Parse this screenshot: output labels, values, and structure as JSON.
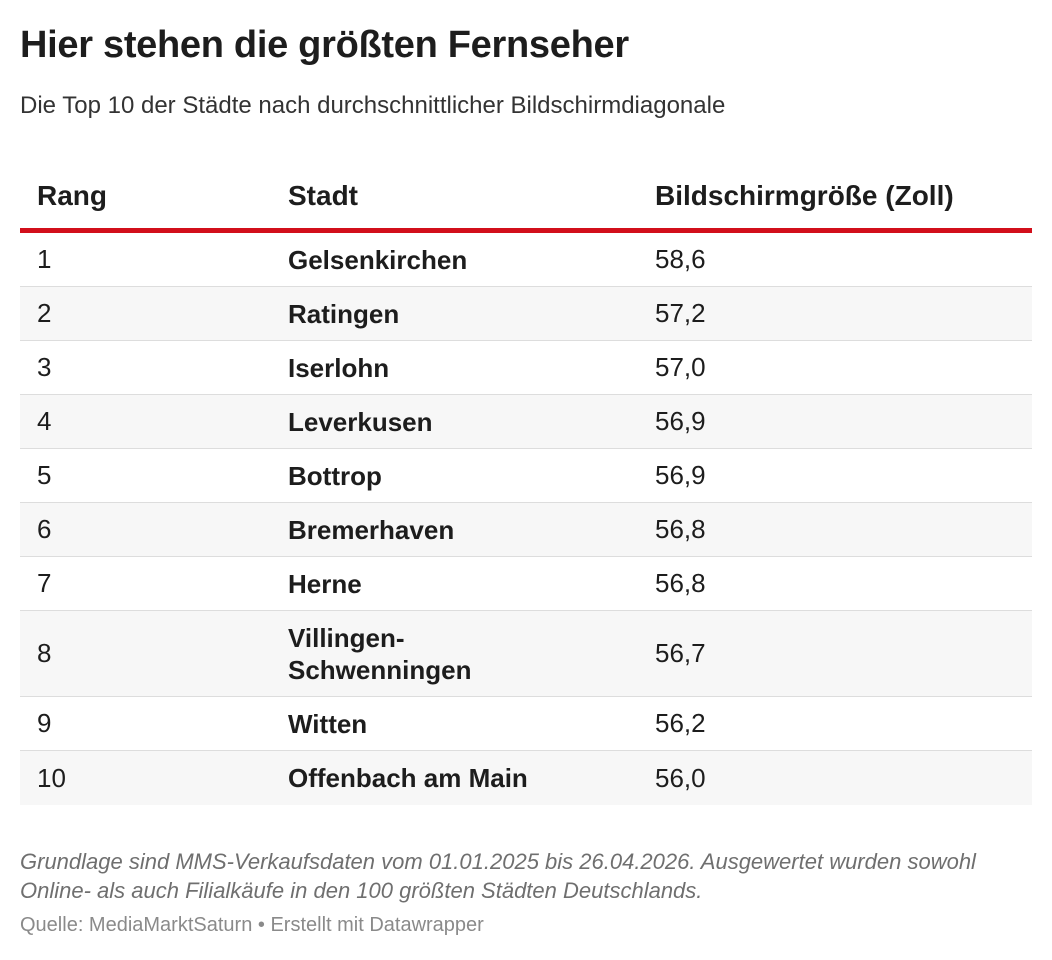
{
  "title": "Hier stehen die größten Fernseher",
  "subtitle": "Die Top 10 der Städte nach durchschnittlicher Bildschirmdiagonale",
  "chart_data": {
    "type": "table",
    "columns": [
      "Rang",
      "Stadt",
      "Bildschirmgröße (Zoll)"
    ],
    "rows": [
      {
        "rank": "1",
        "city": [
          "Gelsenkirchen"
        ],
        "size": "58,6"
      },
      {
        "rank": "2",
        "city": [
          "Ratingen"
        ],
        "size": "57,2"
      },
      {
        "rank": "3",
        "city": [
          "Iserlohn"
        ],
        "size": "57,0"
      },
      {
        "rank": "4",
        "city": [
          "Leverkusen"
        ],
        "size": "56,9"
      },
      {
        "rank": "5",
        "city": [
          "Bottrop"
        ],
        "size": "56,9"
      },
      {
        "rank": "6",
        "city": [
          "Bremerhaven"
        ],
        "size": "56,8"
      },
      {
        "rank": "7",
        "city": [
          "Herne"
        ],
        "size": "56,8"
      },
      {
        "rank": "8",
        "city": [
          "Villingen-",
          "Schwenningen"
        ],
        "size": "56,7"
      },
      {
        "rank": "9",
        "city": [
          "Witten"
        ],
        "size": "56,2"
      },
      {
        "rank": "10",
        "city": [
          "Offenbach am Main"
        ],
        "size": "56,0"
      }
    ]
  },
  "notes": [
    "Grundlage sind MMS-Verkaufsdaten vom 01.01.2025 bis 26.04.2026. Ausgewertet wurden sowohl",
    "Online- als auch Filialkäufe in den 100 größten Städten Deutschlands."
  ],
  "source": "Quelle: MediaMarktSaturn • Erstellt mit Datawrapper",
  "colors": {
    "header_rule": "#d20f1b",
    "row_alt": "#f7f7f7"
  }
}
